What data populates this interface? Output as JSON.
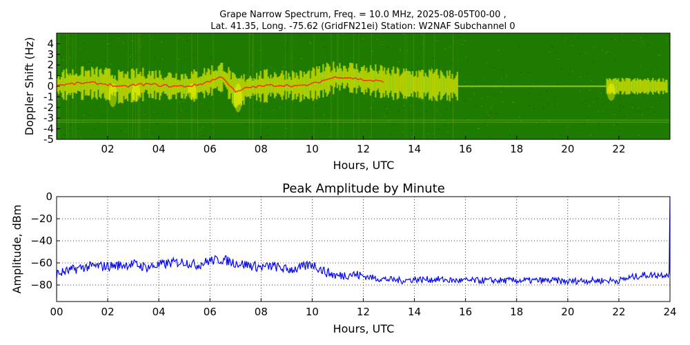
{
  "figure": {
    "title_line1": "Grape Narrow Spectrum, Freq. = 10.0 MHz, 2025-08-05T00-00 ,",
    "title_line2": "Lat.  41.35, Long. -75.62 (GridFN21ei) Station: W2NAF Subchannel 0"
  },
  "chart_data": [
    {
      "type": "heatmap",
      "title": "",
      "xlabel": "Hours, UTC",
      "ylabel": "Doppler Shift (Hz)",
      "xlim": [
        0,
        24
      ],
      "ylim": [
        -5,
        5
      ],
      "x_ticks": [
        "02",
        "04",
        "06",
        "08",
        "10",
        "12",
        "14",
        "16",
        "18",
        "20",
        "22"
      ],
      "x_tick_values": [
        2,
        4,
        6,
        8,
        10,
        12,
        14,
        16,
        18,
        20,
        22
      ],
      "y_ticks": [
        "4",
        "3",
        "2",
        "1",
        "0",
        "-1",
        "-2",
        "-3",
        "-4",
        "-5"
      ],
      "y_tick_values": [
        4,
        3,
        2,
        1,
        0,
        -1,
        -2,
        -3,
        -4,
        -5
      ],
      "background_color": "#1f7a00",
      "signal_colors": [
        "#ffff00",
        "#ff0000"
      ],
      "doppler_trace": {
        "hours": [
          0,
          0.5,
          1,
          1.5,
          2,
          2.5,
          3,
          3.5,
          4,
          4.5,
          5,
          5.5,
          6,
          6.5,
          7,
          7.5,
          8,
          8.5,
          9,
          9.5,
          10,
          10.5,
          11,
          11.5,
          12,
          12.5,
          13,
          14,
          15,
          15.7
        ],
        "shift_hz": [
          0.1,
          0.2,
          0.3,
          0.3,
          0.2,
          -0.1,
          0.1,
          0.2,
          0.1,
          0.0,
          0.0,
          0.1,
          0.5,
          0.9,
          -0.6,
          -0.1,
          0.0,
          0.1,
          0.1,
          0.0,
          0.2,
          0.6,
          0.9,
          0.8,
          0.6,
          0.5,
          0.3,
          0.2,
          0.1,
          0.0
        ]
      },
      "quiet_spans_hours": [
        [
          15.7,
          21.5
        ]
      ]
    },
    {
      "type": "line",
      "title": "Peak Amplitude by Minute",
      "xlabel": "Hours, UTC",
      "ylabel": "Amplitude, dBm",
      "xlim": [
        0,
        24
      ],
      "ylim": [
        -95,
        0
      ],
      "x_ticks": [
        "00",
        "02",
        "04",
        "06",
        "08",
        "10",
        "12",
        "14",
        "16",
        "18",
        "20",
        "22",
        "24"
      ],
      "y_ticks": [
        "0",
        "−20",
        "−40",
        "−60",
        "−80"
      ],
      "y_tick_values": [
        0,
        -20,
        -40,
        -60,
        -80
      ],
      "grid": true,
      "line_color": "#0000ff",
      "series": [
        {
          "x": [
            0,
            0.5,
            1,
            1.5,
            2,
            2.5,
            3,
            3.5,
            4,
            4.5,
            5,
            5.5,
            6,
            6.5,
            7,
            7.5,
            8,
            8.5,
            9,
            9.5,
            10,
            10.5,
            11,
            11.5,
            12,
            12.5,
            13,
            13.5,
            14,
            14.5,
            15,
            15.5,
            16,
            16.5,
            17,
            17.5,
            18,
            18.5,
            19,
            19.5,
            20,
            20.5,
            21,
            21.5,
            22,
            22.5,
            23,
            23.5,
            24
          ],
          "values": [
            -70,
            -67,
            -64,
            -63,
            -63,
            -62,
            -61,
            -64,
            -62,
            -60,
            -59,
            -62,
            -58,
            -57,
            -60,
            -62,
            -64,
            -63,
            -66,
            -65,
            -61,
            -68,
            -72,
            -70,
            -72,
            -74,
            -75,
            -76,
            -75,
            -75,
            -75,
            -76,
            -76,
            -76,
            -76,
            -76,
            -76,
            -76,
            -76,
            -76,
            -77,
            -76,
            -76,
            -76,
            -76,
            -73,
            -71,
            -71,
            -70
          ]
        }
      ]
    }
  ]
}
